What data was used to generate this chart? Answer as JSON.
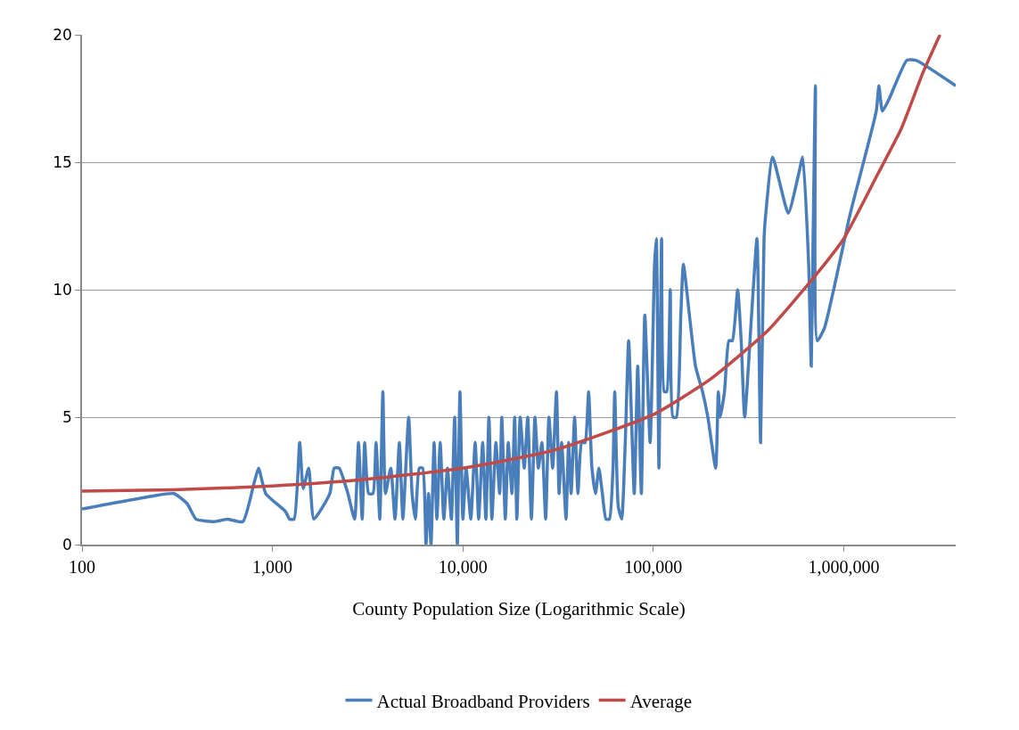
{
  "chart_data": {
    "type": "line",
    "xlabel": "County Population Size (Logarithmic Scale)",
    "log": "x",
    "grid": "y",
    "legend": "bottom",
    "marker": "none",
    "line_style": "solid",
    "xlim": [
      100,
      3870000
    ],
    "xticks": [
      {
        "value": 100,
        "label": "100"
      },
      {
        "value": 1000,
        "label": "1,000"
      },
      {
        "value": 10000,
        "label": "10,000"
      },
      {
        "value": 100000,
        "label": "100,000"
      },
      {
        "value": 1000000,
        "label": "1,000,000"
      }
    ],
    "ylim": [
      0,
      20
    ],
    "yticks": [
      0,
      5,
      10,
      15,
      20
    ],
    "series": [
      {
        "name": "Actual Broadband Providers",
        "color": "#4a7ebb",
        "x": [
          100,
          232,
          304,
          357,
          397,
          494,
          580,
          699,
          800,
          845,
          922,
          1170,
          1230,
          1300,
          1390,
          1450,
          1550,
          1650,
          2000,
          2110,
          2240,
          2490,
          2700,
          2830,
          2960,
          3050,
          3200,
          3370,
          3500,
          3660,
          3800,
          3920,
          4180,
          4400,
          4640,
          4840,
          5190,
          5410,
          5630,
          5900,
          6150,
          6400,
          6600,
          6800,
          7060,
          7300,
          7600,
          7940,
          8300,
          8700,
          9050,
          9350,
          9650,
          10000,
          10400,
          11000,
          11600,
          12100,
          12700,
          13200,
          13700,
          14200,
          14900,
          15600,
          16000,
          16700,
          17300,
          18100,
          18700,
          19200,
          20000,
          21000,
          21900,
          22900,
          23900,
          24900,
          26000,
          27200,
          28300,
          29600,
          31000,
          32000,
          33000,
          34800,
          35900,
          37000,
          38600,
          40200,
          42000,
          43800,
          45700,
          47600,
          49700,
          51800,
          54000,
          56400,
          58800,
          61400,
          62700,
          65400,
          68200,
          71200,
          74200,
          79400,
          82800,
          86500,
          90200,
          96200,
          101500,
          103700,
          107000,
          110500,
          114000,
          117600,
          122700,
          126700,
          132200,
          139400,
          143800,
          154700,
          166500,
          181300,
          193300,
          212500,
          219400,
          224000,
          236400,
          249300,
          260000,
          277200,
          289200,
          301700,
          328000,
          350000,
          365700,
          381300,
          389600,
          423000,
          511000,
          578000,
          609000,
          654000,
          675000,
          690000,
          710000,
          726000,
          792000,
          1083000,
          1481000,
          1529000,
          1595000,
          1735000,
          2143000,
          2390000,
          3870000
        ],
        "values": [
          1.4,
          1.9,
          2,
          1.6,
          1,
          0.9,
          1,
          0.9,
          2.4,
          3,
          2,
          1.3,
          1,
          1,
          4,
          2.2,
          3,
          1,
          2,
          3,
          3,
          2,
          1,
          4,
          1,
          4,
          2,
          2,
          4,
          1,
          6,
          2,
          3,
          1,
          4,
          1,
          5,
          2,
          1,
          3,
          3,
          0,
          2,
          0,
          4,
          1,
          4,
          1,
          3,
          1,
          5,
          0,
          6,
          1,
          3,
          1,
          4,
          1,
          4,
          1,
          5,
          1,
          4,
          2,
          5,
          1,
          4,
          2,
          5,
          1,
          5,
          3,
          5,
          1,
          5,
          3,
          4,
          1,
          5,
          3,
          6,
          2,
          4,
          1,
          4,
          2,
          5,
          2,
          4,
          4,
          6,
          3,
          2,
          3,
          2,
          1,
          1,
          3,
          6,
          1.5,
          1,
          4,
          8,
          2,
          7,
          2,
          9,
          4,
          11,
          12,
          3,
          12,
          6,
          6,
          10,
          5,
          5,
          9,
          11,
          9,
          7,
          6,
          5,
          3,
          6,
          5,
          6,
          8,
          8,
          10,
          8,
          5,
          9,
          12,
          4,
          12,
          13,
          15.2,
          13,
          14.5,
          15.2,
          11,
          7,
          12,
          18,
          8,
          8.5,
          13,
          17,
          18,
          17,
          17.5,
          19,
          19,
          18
        ]
      },
      {
        "name": "Average",
        "color": "#be4b48",
        "x": [
          100,
          300,
          1000,
          3000,
          10000,
          30000,
          100000,
          200000,
          400000,
          700000,
          1000000,
          1500000,
          2000000,
          2600000,
          3200000
        ],
        "values": [
          2.1,
          2.15,
          2.3,
          2.55,
          3,
          3.7,
          5.1,
          6.5,
          8.4,
          10.5,
          12,
          14.5,
          16.3,
          18.5,
          20
        ]
      }
    ]
  }
}
